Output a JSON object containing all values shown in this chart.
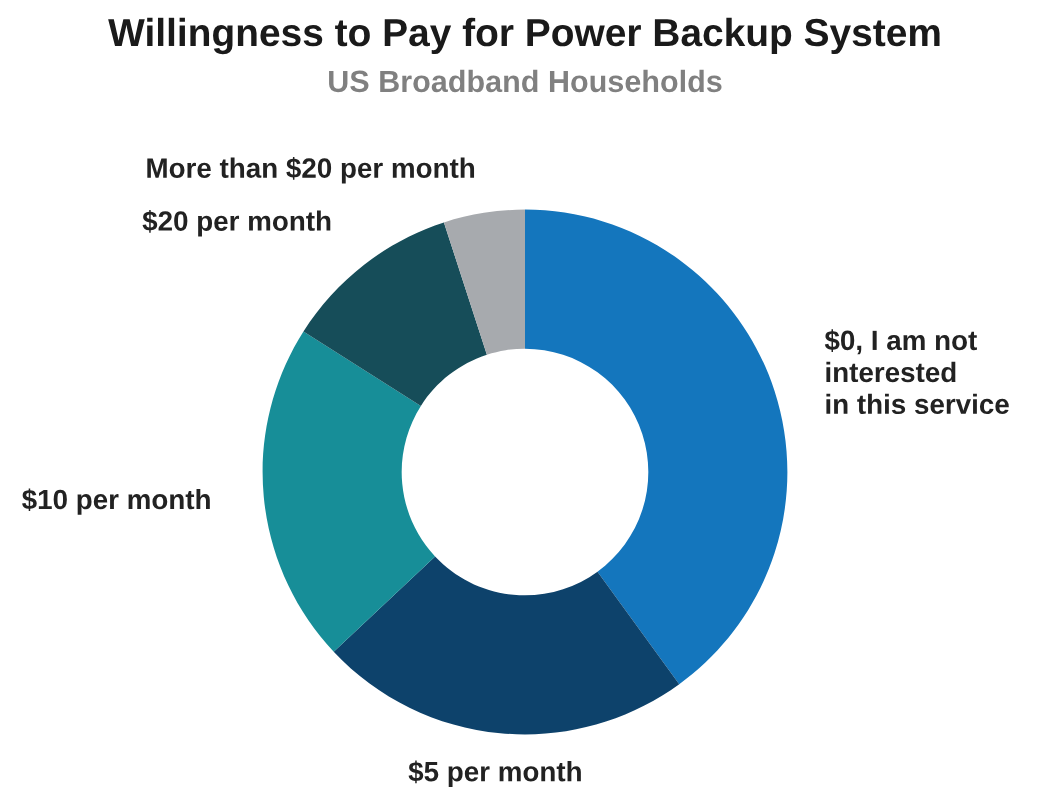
{
  "chart_data": {
    "type": "donut",
    "title": "Willingness to Pay for Power Backup System",
    "subtitle": "US Broadband Households",
    "categories": [
      "$0, I am not\ninterested\nin this service",
      "$5 per month",
      "$10 per month",
      "$20 per month",
      "More than $20 per month"
    ],
    "values": [
      40,
      23,
      21,
      11,
      5
    ],
    "colors": [
      "#1476bd",
      "#0d426b",
      "#178e98",
      "#164d59",
      "#a7aaae"
    ]
  }
}
